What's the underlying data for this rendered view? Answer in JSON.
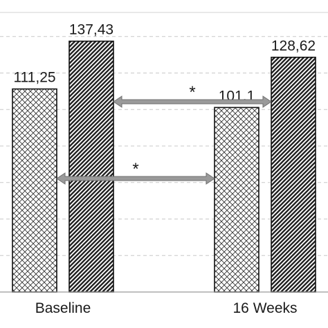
{
  "chart_data": {
    "type": "bar",
    "categories": [
      "Baseline",
      "16 Weeks"
    ],
    "series": [
      {
        "values": [
          111.25,
          101.1
        ],
        "labels": [
          "111,25",
          "101,1"
        ],
        "pattern": "crosshatch"
      },
      {
        "values": [
          137.43,
          128.62
        ],
        "labels": [
          "137,43",
          "128,62"
        ],
        "pattern": "diagonal"
      }
    ],
    "ylim": [
      0,
      160
    ],
    "grid": true,
    "annotations": [
      {
        "text": "*",
        "from": {
          "category": 0,
          "series": 1
        },
        "to": {
          "category": 1,
          "series": 1
        }
      },
      {
        "text": "*",
        "from": {
          "category": 0,
          "series": 0
        },
        "to": {
          "category": 1,
          "series": 0
        }
      }
    ],
    "colors": {
      "arrow": "#9a9a9a",
      "bar_stroke": "#111111",
      "grid": "#c8c8c8"
    }
  }
}
